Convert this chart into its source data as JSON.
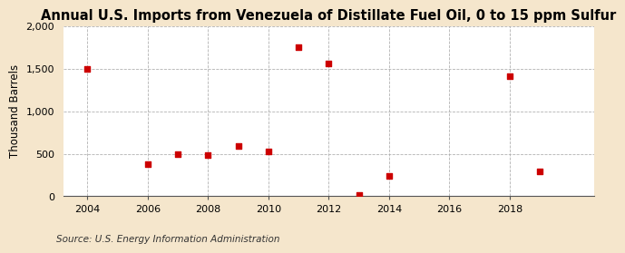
{
  "title": "Annual U.S. Imports from Venezuela of Distillate Fuel Oil, 0 to 15 ppm Sulfur",
  "ylabel": "Thousand Barrels",
  "source": "Source: U.S. Energy Information Administration",
  "years": [
    2004,
    2006,
    2007,
    2008,
    2009,
    2010,
    2011,
    2012,
    2013,
    2014,
    2018,
    2019
  ],
  "values": [
    1500,
    380,
    490,
    480,
    590,
    530,
    1750,
    1560,
    20,
    240,
    1410,
    290
  ],
  "xlim": [
    2003.2,
    2020.8
  ],
  "ylim": [
    0,
    2000
  ],
  "yticks": [
    0,
    500,
    1000,
    1500,
    2000
  ],
  "ytick_labels": [
    "0",
    "500",
    "1,000",
    "1,500",
    "2,000"
  ],
  "xticks": [
    2004,
    2006,
    2008,
    2010,
    2012,
    2014,
    2016,
    2018
  ],
  "marker_color": "#cc0000",
  "marker_size": 5,
  "figure_bg_color": "#f5e6cc",
  "plot_bg_color": "#ffffff",
  "grid_color": "#aaaaaa",
  "title_fontsize": 10.5,
  "label_fontsize": 8.5,
  "tick_fontsize": 8,
  "source_fontsize": 7.5
}
